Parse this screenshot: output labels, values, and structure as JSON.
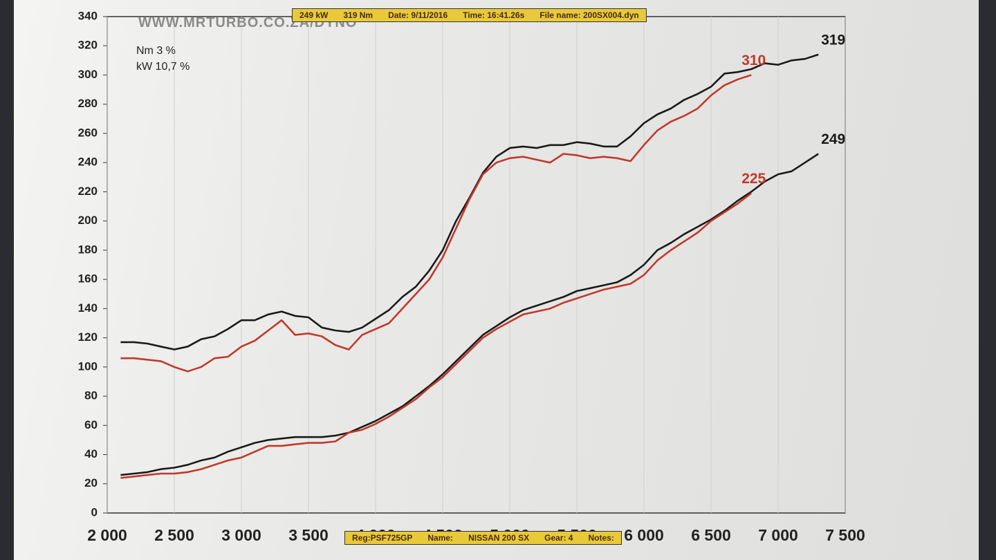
{
  "chart_data": {
    "type": "line",
    "watermark": "WWW.MRTURBO.CO.ZA/DYNO",
    "notes": [
      "Nm 3 %",
      "kW 10,7 %"
    ],
    "header": [
      "249 kW",
      "319 Nm",
      "Date: 9/11/2016",
      "Time: 16:41.26s",
      "File name: 200SX004.dyn"
    ],
    "footer": [
      "Reg:PSF725GP",
      "Name:",
      "NISSAN 200 SX",
      "Gear: 4",
      "Notes:"
    ],
    "x": [
      2100,
      2200,
      2300,
      2400,
      2500,
      2600,
      2700,
      2800,
      2900,
      3000,
      3100,
      3200,
      3300,
      3400,
      3500,
      3600,
      3700,
      3800,
      3900,
      4000,
      4100,
      4200,
      4300,
      4400,
      4500,
      4600,
      4700,
      4800,
      4900,
      5000,
      5100,
      5200,
      5300,
      5400,
      5500,
      5600,
      5700,
      5800,
      5900,
      6000,
      6100,
      6200,
      6300,
      6400,
      6500,
      6600,
      6700,
      6800,
      6900,
      7000,
      7100,
      7200,
      7300
    ],
    "xlim": [
      2000,
      7500
    ],
    "xticks": [
      {
        "value": 2000,
        "label": "2 000"
      },
      {
        "value": 2500,
        "label": "2 500"
      },
      {
        "value": 3000,
        "label": "3 000"
      },
      {
        "value": 3500,
        "label": "3 500"
      },
      {
        "value": 4000,
        "label": "4 000"
      },
      {
        "value": 4500,
        "label": "4 500"
      },
      {
        "value": 5000,
        "label": "5 000"
      },
      {
        "value": 5500,
        "label": "5 500"
      },
      {
        "value": 6000,
        "label": "6 000"
      },
      {
        "value": 6500,
        "label": "6 500"
      },
      {
        "value": 7000,
        "label": "7 000"
      },
      {
        "value": 7500,
        "label": "7 500"
      }
    ],
    "ylim": [
      0,
      340
    ],
    "yticks": [
      0,
      20,
      40,
      60,
      80,
      100,
      120,
      140,
      160,
      180,
      200,
      220,
      240,
      260,
      280,
      300,
      320,
      340
    ],
    "grid": true,
    "series": [
      {
        "color": "#1a1a1a",
        "end_label": 319,
        "values": [
          117,
          117,
          116,
          114,
          112,
          114,
          119,
          121,
          126,
          132,
          132,
          136,
          138,
          135,
          134,
          127,
          125,
          124,
          127,
          133,
          139,
          148,
          155,
          166,
          180,
          200,
          216,
          233,
          244,
          250,
          251,
          250,
          252,
          252,
          254,
          253,
          251,
          251,
          258,
          267,
          273,
          277,
          283,
          287,
          292,
          301,
          302,
          304,
          308,
          307,
          310,
          311,
          314
        ]
      },
      {
        "color": "#c0392b",
        "end_label": 310,
        "values": [
          106,
          106,
          105,
          104,
          100,
          97,
          100,
          106,
          107,
          114,
          118,
          125,
          132,
          122,
          123,
          121,
          115,
          112,
          122,
          126,
          130,
          140,
          150,
          160,
          175,
          195,
          215,
          232,
          240,
          243,
          244,
          242,
          240,
          246,
          245,
          243,
          244,
          243,
          241,
          252,
          262,
          268,
          272,
          277,
          286,
          293,
          297,
          300,
          null,
          null,
          null,
          null,
          null
        ]
      },
      {
        "color": "#1a1a1a",
        "end_label": 249,
        "values": [
          26,
          27,
          28,
          30,
          31,
          33,
          36,
          38,
          42,
          45,
          48,
          50,
          51,
          52,
          52,
          52,
          53,
          55,
          59,
          63,
          68,
          73,
          80,
          87,
          95,
          104,
          113,
          122,
          128,
          134,
          139,
          142,
          145,
          148,
          152,
          154,
          156,
          158,
          163,
          170,
          180,
          185,
          191,
          196,
          201,
          207,
          214,
          220,
          227,
          232,
          234,
          240,
          246
        ]
      },
      {
        "color": "#c0392b",
        "end_label": 225,
        "values": [
          24,
          25,
          26,
          27,
          27,
          28,
          30,
          33,
          36,
          38,
          42,
          46,
          46,
          47,
          48,
          48,
          49,
          55,
          57,
          61,
          66,
          72,
          78,
          86,
          93,
          102,
          111,
          120,
          126,
          131,
          136,
          138,
          140,
          144,
          147,
          150,
          153,
          155,
          157,
          163,
          173,
          180,
          186,
          192,
          200,
          206,
          212,
          219,
          null,
          null,
          null,
          null,
          null
        ]
      }
    ]
  }
}
